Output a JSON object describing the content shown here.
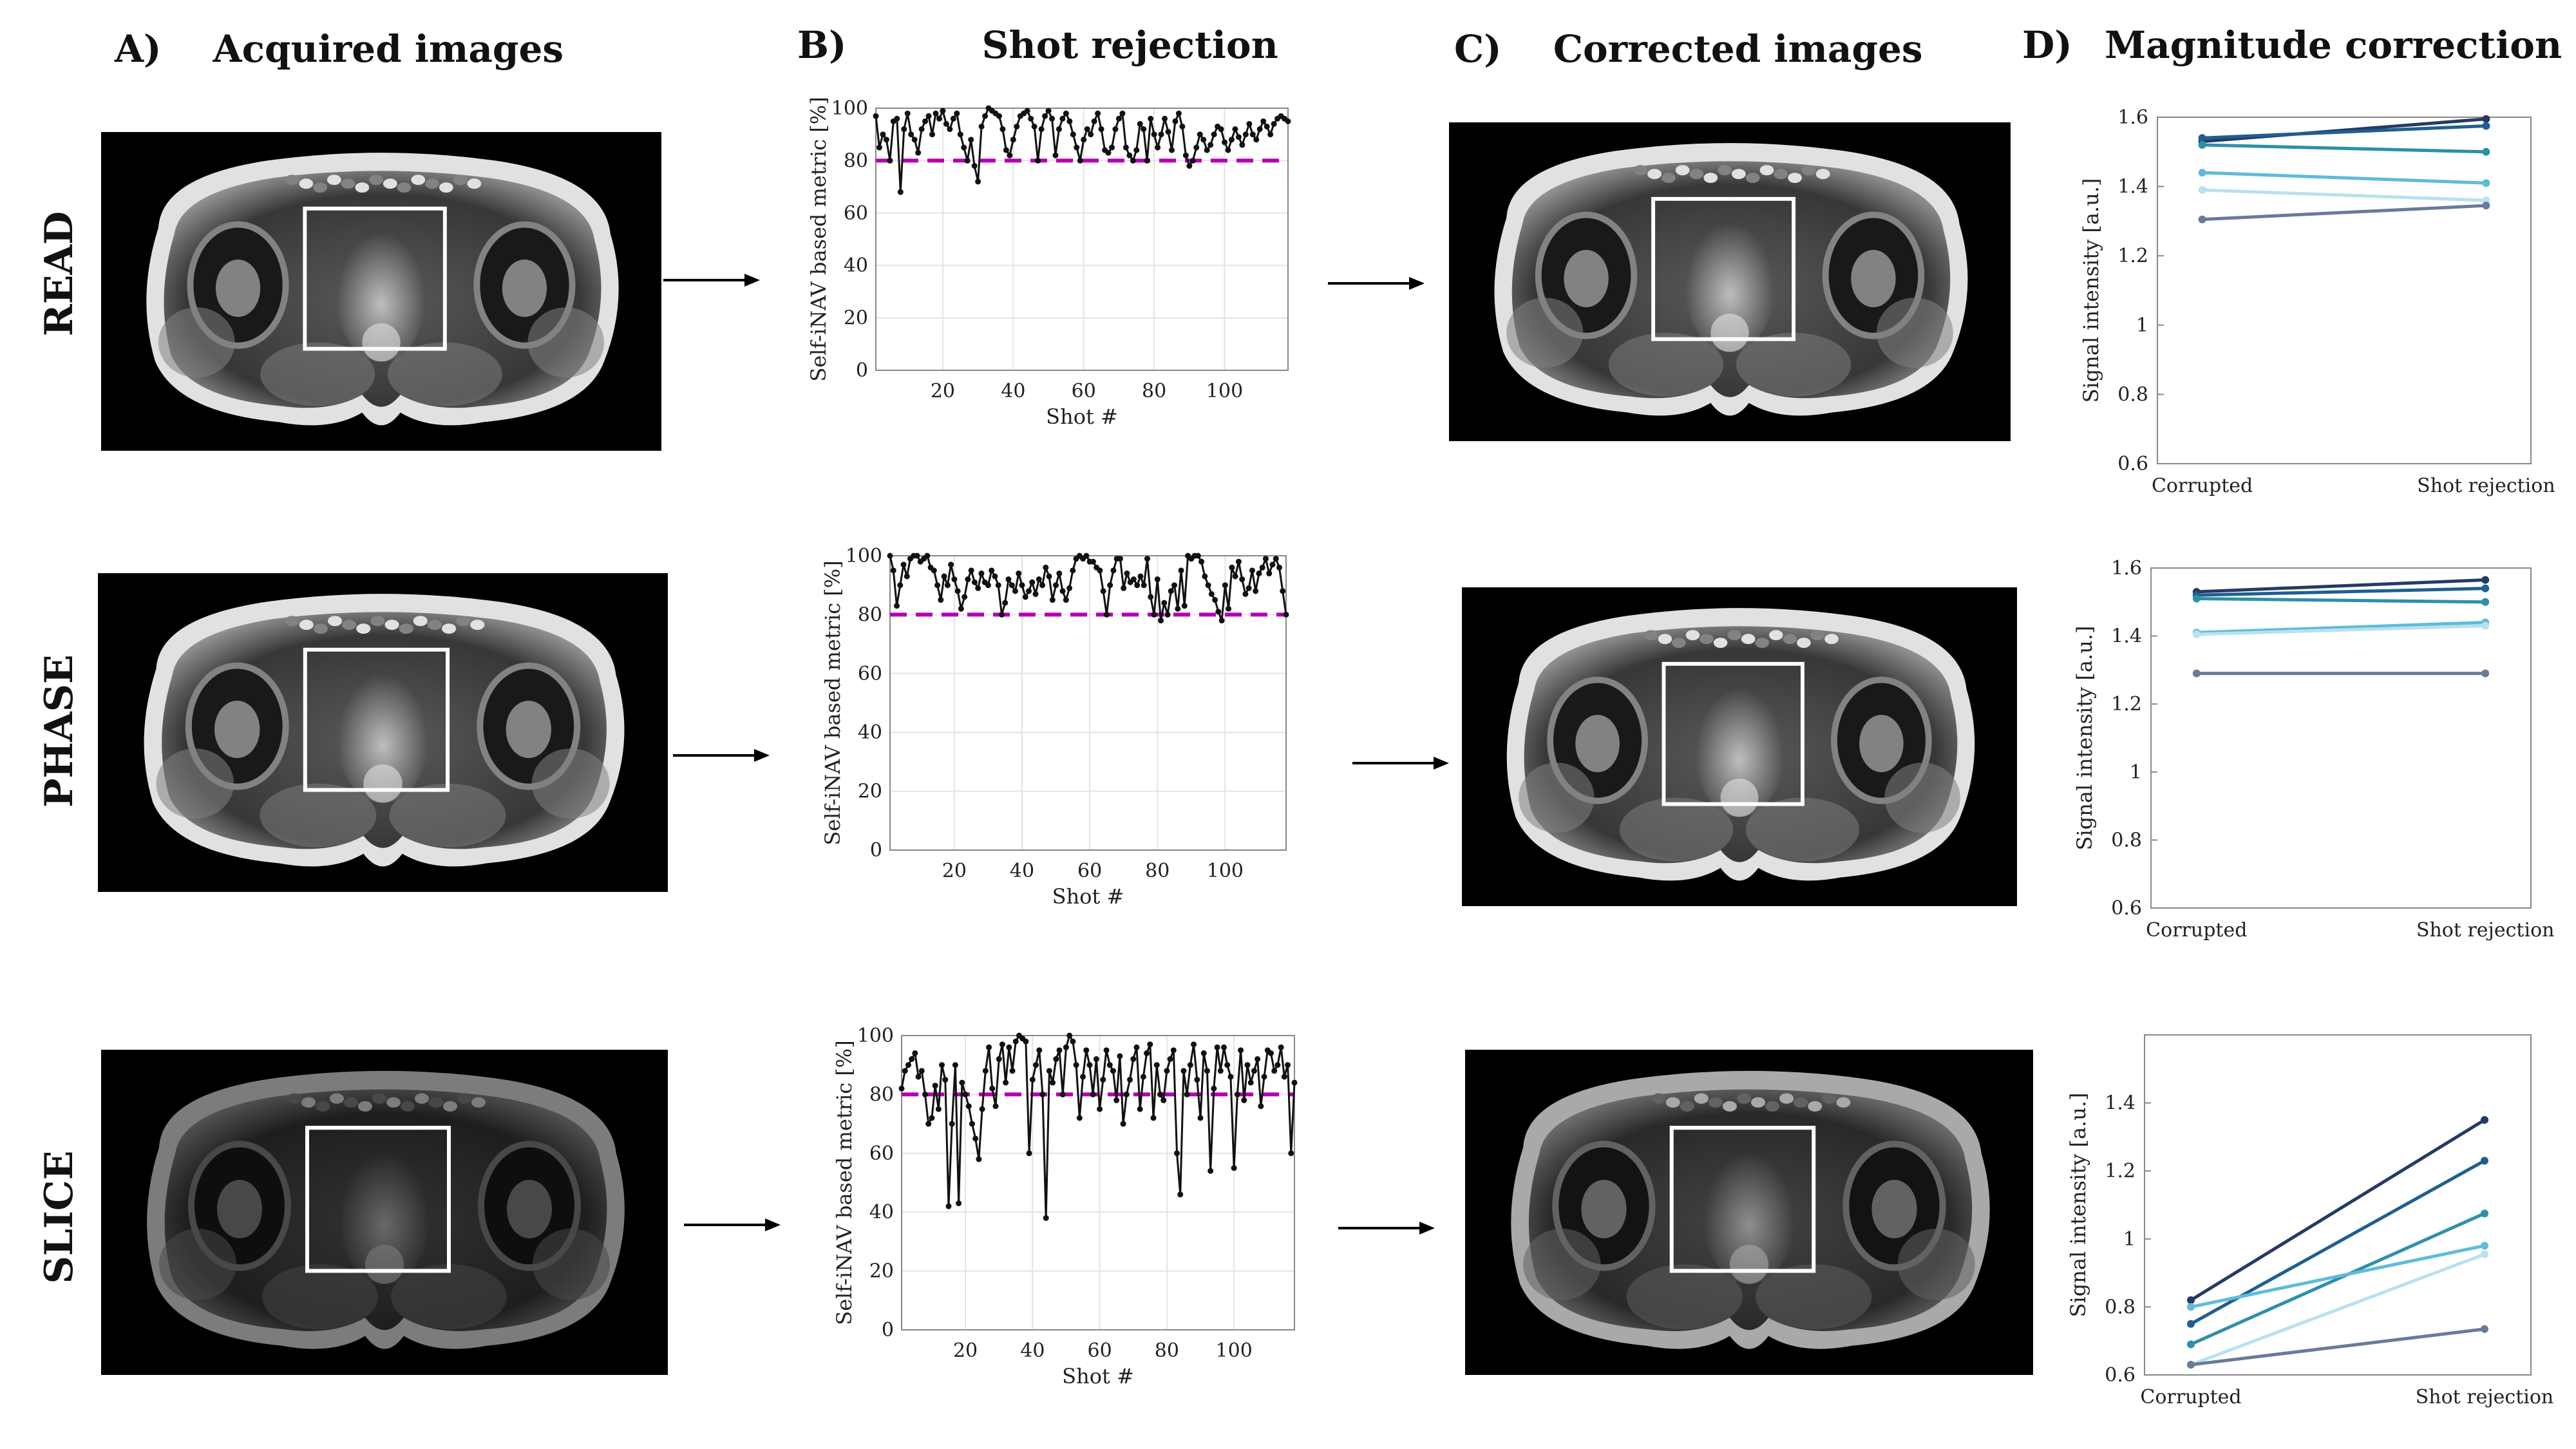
{
  "columns": {
    "a": {
      "letter": "A)",
      "title": "Acquired images"
    },
    "b": {
      "letter": "B)",
      "title": "Shot rejection"
    },
    "c": {
      "letter": "C)",
      "title": "Corrected images"
    },
    "d": {
      "letter": "D)",
      "title": "Magnitude correction"
    }
  },
  "rows": [
    "READ",
    "PHASE",
    "SLICE"
  ],
  "colors": {
    "threshold": "#b300b3",
    "series": [
      "#253a66",
      "#1f5f8f",
      "#2e8fa8",
      "#5fbcd8",
      "#b9e1ef",
      "#6a7a99"
    ]
  },
  "chart_data": [
    {
      "type": "line",
      "row": "READ",
      "xlabel": "Shot #",
      "ylabel": "Self-iNAV based metric [%]",
      "xlim": [
        1,
        118
      ],
      "ylim": [
        0,
        100
      ],
      "xticks": [
        "20",
        "40",
        "60",
        "80",
        "100"
      ],
      "yticks": [
        "0",
        "20",
        "40",
        "60",
        "80",
        "100"
      ],
      "threshold": 80,
      "y": [
        97,
        85,
        90,
        88,
        80,
        95,
        96,
        68,
        92,
        98,
        90,
        88,
        83,
        92,
        95,
        97,
        90,
        98,
        96,
        99,
        94,
        92,
        96,
        98,
        90,
        85,
        80,
        88,
        78,
        72,
        93,
        97,
        100,
        99,
        98,
        97,
        92,
        84,
        82,
        88,
        93,
        97,
        98,
        99,
        96,
        93,
        80,
        92,
        97,
        99,
        96,
        82,
        92,
        96,
        98,
        95,
        90,
        85,
        80,
        88,
        92,
        90,
        95,
        98,
        92,
        84,
        83,
        85,
        92,
        96,
        98,
        85,
        82,
        80,
        84,
        94,
        92,
        80,
        96,
        90,
        85,
        90,
        96,
        91,
        84,
        95,
        98,
        93,
        82,
        78,
        80,
        85,
        90,
        88,
        84,
        86,
        90,
        93,
        92,
        87,
        84,
        88,
        92,
        89,
        86,
        90,
        94,
        90,
        88,
        92,
        95,
        93,
        90,
        94,
        96,
        97,
        96,
        95
      ]
    },
    {
      "type": "line",
      "row": "PHASE",
      "xlabel": "Shot #",
      "ylabel": "Self-iNAV based metric [%]",
      "xlim": [
        1,
        118
      ],
      "ylim": [
        0,
        100
      ],
      "xticks": [
        "20",
        "40",
        "60",
        "80",
        "100"
      ],
      "yticks": [
        "0",
        "20",
        "40",
        "60",
        "80",
        "100"
      ],
      "threshold": 80,
      "y": [
        100,
        95,
        83,
        90,
        97,
        93,
        99,
        100,
        100,
        98,
        99,
        100,
        96,
        95,
        90,
        85,
        93,
        90,
        97,
        92,
        88,
        82,
        86,
        92,
        95,
        91,
        89,
        94,
        91,
        90,
        95,
        93,
        90,
        80,
        84,
        92,
        90,
        88,
        94,
        90,
        86,
        88,
        91,
        87,
        92,
        90,
        96,
        93,
        85,
        90,
        94,
        88,
        85,
        89,
        95,
        99,
        100,
        99,
        100,
        98,
        98,
        96,
        95,
        88,
        80,
        90,
        95,
        99,
        99,
        89,
        94,
        91,
        92,
        90,
        93,
        90,
        99,
        86,
        80,
        92,
        78,
        84,
        80,
        88,
        90,
        82,
        95,
        83,
        100,
        99,
        100,
        100,
        98,
        93,
        90,
        87,
        85,
        81,
        78,
        90,
        82,
        96,
        93,
        98,
        92,
        87,
        89,
        95,
        88,
        94,
        96,
        99,
        94,
        97,
        99,
        96,
        88,
        80
      ]
    },
    {
      "type": "line",
      "row": "SLICE",
      "xlabel": "Shot #",
      "ylabel": "Self-iNAV based metric [%]",
      "xlim": [
        1,
        118
      ],
      "ylim": [
        0,
        100
      ],
      "xticks": [
        "20",
        "40",
        "60",
        "80",
        "100"
      ],
      "yticks": [
        "0",
        "20",
        "40",
        "60",
        "80",
        "100"
      ],
      "threshold": 80,
      "y": [
        82,
        88,
        90,
        92,
        94,
        86,
        88,
        80,
        70,
        72,
        83,
        75,
        90,
        85,
        42,
        70,
        90,
        43,
        84,
        80,
        76,
        70,
        65,
        58,
        75,
        88,
        96,
        82,
        76,
        92,
        97,
        84,
        96,
        88,
        98,
        100,
        99,
        98,
        60,
        85,
        90,
        95,
        80,
        38,
        88,
        84,
        92,
        95,
        80,
        96,
        100,
        98,
        90,
        72,
        86,
        95,
        90,
        80,
        92,
        75,
        85,
        95,
        90,
        88,
        78,
        93,
        70,
        80,
        85,
        92,
        96,
        75,
        86,
        94,
        97,
        72,
        90,
        80,
        78,
        88,
        92,
        95,
        60,
        46,
        88,
        80,
        90,
        97,
        85,
        72,
        94,
        88,
        54,
        82,
        96,
        88,
        96,
        90,
        86,
        55,
        80,
        95,
        78,
        90,
        84,
        88,
        92,
        76,
        86,
        95,
        94,
        88,
        90,
        96,
        86,
        90,
        60,
        84
      ]
    },
    {
      "type": "line",
      "row": "READ",
      "xlabel": "",
      "ylabel": "Signal intensity [a.u.]",
      "categories": [
        "Corrupted",
        "Shot rejection"
      ],
      "ylim": [
        0.6,
        1.6
      ],
      "yticks": [
        "0.6",
        "0.8",
        "1",
        "1.2",
        "1.4",
        "1.6"
      ],
      "series": [
        {
          "name": "s1",
          "values": [
            1.53,
            1.595
          ]
        },
        {
          "name": "s2",
          "values": [
            1.54,
            1.575
          ]
        },
        {
          "name": "s3",
          "values": [
            1.52,
            1.5
          ]
        },
        {
          "name": "s4",
          "values": [
            1.44,
            1.41
          ]
        },
        {
          "name": "s5",
          "values": [
            1.39,
            1.36
          ]
        },
        {
          "name": "s6",
          "values": [
            1.305,
            1.345
          ]
        }
      ]
    },
    {
      "type": "line",
      "row": "PHASE",
      "xlabel": "",
      "ylabel": "Signal intensity [a.u.]",
      "categories": [
        "Corrupted",
        "Shot rejection"
      ],
      "ylim": [
        0.6,
        1.6
      ],
      "yticks": [
        "0.6",
        "0.8",
        "1",
        "1.2",
        "1.4",
        "1.6"
      ],
      "series": [
        {
          "name": "s1",
          "values": [
            1.53,
            1.565
          ]
        },
        {
          "name": "s2",
          "values": [
            1.52,
            1.54
          ]
        },
        {
          "name": "s3",
          "values": [
            1.51,
            1.5
          ]
        },
        {
          "name": "s4",
          "values": [
            1.41,
            1.44
          ]
        },
        {
          "name": "s5",
          "values": [
            1.405,
            1.43
          ]
        },
        {
          "name": "s6",
          "values": [
            1.29,
            1.29
          ]
        }
      ]
    },
    {
      "type": "line",
      "row": "SLICE",
      "xlabel": "",
      "ylabel": "Signal intensity [a.u.]",
      "categories": [
        "Corrupted",
        "Shot rejection"
      ],
      "ylim": [
        0.6,
        1.6
      ],
      "yticks": [
        "0.6",
        "0.8",
        "1",
        "1.2",
        "1.4"
      ],
      "series": [
        {
          "name": "s1",
          "values": [
            0.82,
            1.35
          ]
        },
        {
          "name": "s2",
          "values": [
            0.75,
            1.23
          ]
        },
        {
          "name": "s3",
          "values": [
            0.69,
            1.075
          ]
        },
        {
          "name": "s4",
          "values": [
            0.8,
            0.98
          ]
        },
        {
          "name": "s5",
          "values": [
            0.63,
            0.955
          ]
        },
        {
          "name": "s6",
          "values": [
            0.63,
            0.735
          ]
        }
      ]
    }
  ]
}
